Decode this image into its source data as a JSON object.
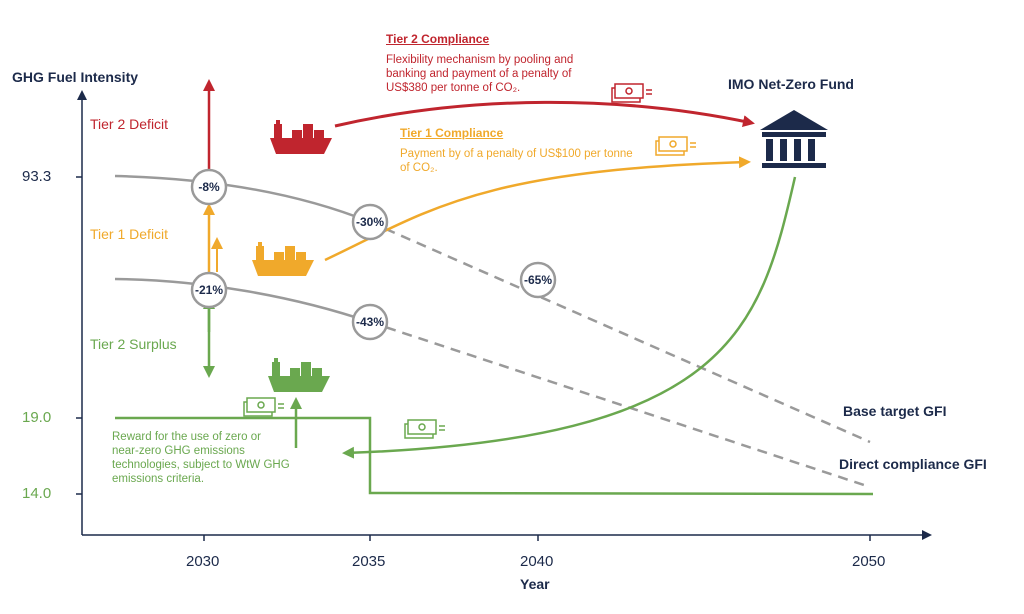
{
  "colors": {
    "navy": "#1c2a4a",
    "red": "#c0252e",
    "orange": "#f0a92b",
    "green": "#6aa84f",
    "gray": "#9a9a9a"
  },
  "axes": {
    "y_title": "GHG Fuel Intensity",
    "x_title": "Year",
    "y_ticks": [
      "93.3",
      "19.0",
      "14.0"
    ],
    "x_ticks": [
      "2030",
      "2035",
      "2040",
      "2050"
    ]
  },
  "zones": {
    "tier2_deficit": "Tier 2 Deficit",
    "tier1_deficit": "Tier 1 Deficit",
    "tier2_surplus": "Tier 2 Surplus"
  },
  "tier2_compliance": {
    "title": "Tier 2 Compliance",
    "body": "Flexibility mechanism by pooling and banking and payment of a penalty of US$380 per tonne of CO₂."
  },
  "tier1_compliance": {
    "title": "Tier 1 Compliance",
    "body": "Payment by of a penalty of US$100 per tonne of CO₂."
  },
  "fund": {
    "label": "IMO Net-Zero Fund",
    "icon": "bank-building-icon"
  },
  "reward": {
    "body": "Reward for the use of zero or near-zero GHG emissions technologies, subject to WtW GHG emissions criteria."
  },
  "line_labels": {
    "base": "Base target GFI",
    "direct": "Direct compliance GFI"
  },
  "reduction_markers": {
    "base_2030": "-8%",
    "base_2035": "-30%",
    "base_2040": "-65%",
    "direct_2030": "-21%",
    "direct_2035": "-43%"
  },
  "icons": {
    "ship": "cargo-ship-icon",
    "money": "banknote-icon"
  }
}
